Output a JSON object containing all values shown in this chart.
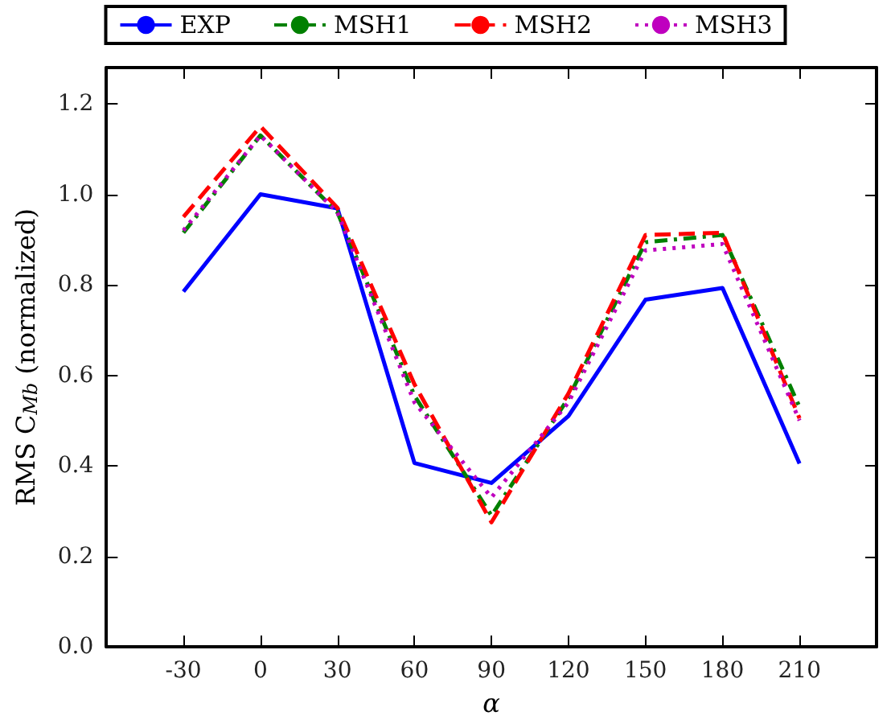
{
  "chart_data": {
    "type": "line",
    "xlabel": "α",
    "ylabel": "RMS C$_{Mb}$ (normalized)",
    "x": [
      -30,
      0,
      30,
      60,
      90,
      120,
      150,
      180,
      210
    ],
    "series": [
      {
        "name": "EXP",
        "color": "#0000ff",
        "line_style": "solid",
        "values": [
          0.785,
          1.0,
          0.969,
          0.406,
          0.362,
          0.51,
          0.767,
          0.793,
          0.405
        ]
      },
      {
        "name": "MSH1",
        "color": "#008000",
        "line_style": "dashdot",
        "values": [
          0.915,
          1.13,
          0.96,
          0.555,
          0.29,
          0.55,
          0.894,
          0.91,
          0.53
        ]
      },
      {
        "name": "MSH2",
        "color": "#ff0000",
        "line_style": "dashed",
        "values": [
          0.95,
          1.15,
          0.97,
          0.58,
          0.275,
          0.56,
          0.91,
          0.915,
          0.505
        ]
      },
      {
        "name": "MSH3",
        "color": "#bf00bf",
        "line_style": "dotted",
        "values": [
          0.92,
          1.13,
          0.96,
          0.54,
          0.33,
          0.54,
          0.876,
          0.89,
          0.5
        ]
      }
    ],
    "xlim": [
      -60,
      240
    ],
    "xticks": [
      -30,
      0,
      30,
      60,
      90,
      120,
      150,
      180,
      210
    ],
    "ylim": [
      0,
      1.28
    ],
    "yticks": [
      {
        "value": 0,
        "label": "0.0"
      },
      {
        "value": 0.2,
        "label": "0.2"
      },
      {
        "value": 0.4,
        "label": "0.4"
      },
      {
        "value": 0.6,
        "label": "0.6"
      },
      {
        "value": 0.8,
        "label": "0.8"
      },
      {
        "value": 1.0,
        "label": "1.0"
      },
      {
        "value": 1.2,
        "label": "1.2"
      }
    ],
    "legend": "top",
    "marker": "none",
    "grid": false
  }
}
